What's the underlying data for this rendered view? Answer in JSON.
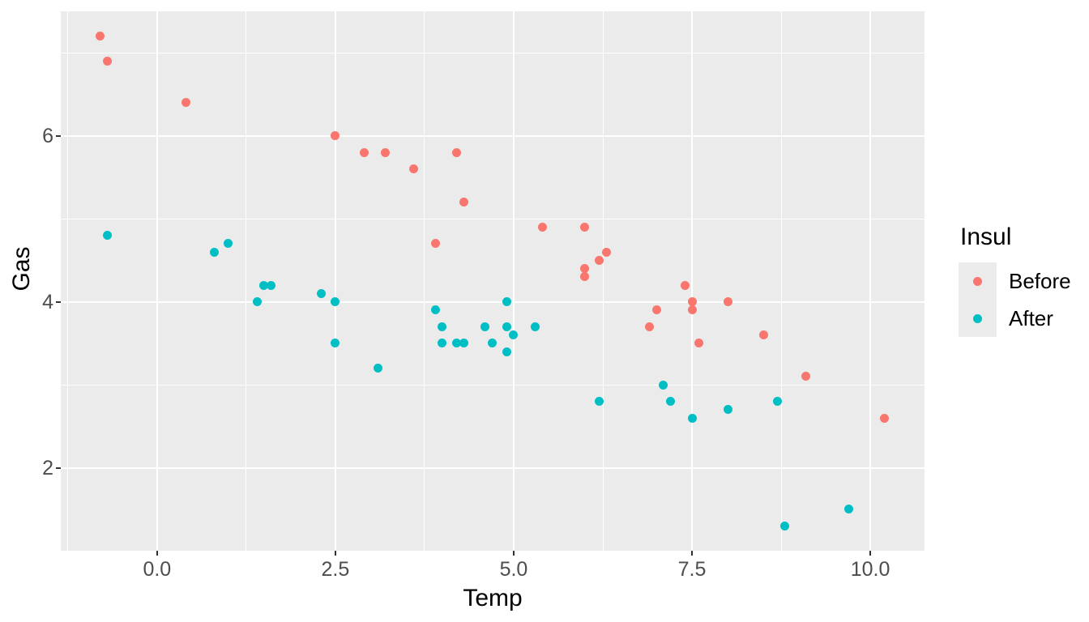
{
  "chart_data": {
    "type": "scatter",
    "title": "",
    "xlabel": "Temp",
    "ylabel": "Gas",
    "xlim": [
      -1.35,
      10.76
    ],
    "ylim": [
      1.0,
      7.5
    ],
    "grid": "on",
    "panel_background": "#EBEBEB",
    "gridline_color": "#FFFFFF",
    "tick_text_color": "#4D4D4D",
    "x_axis": {
      "ticks": [
        {
          "v": 0,
          "label": "0.0"
        },
        {
          "v": 2.5,
          "label": "2.5"
        },
        {
          "v": 5,
          "label": "5.0"
        },
        {
          "v": 7.5,
          "label": "7.5"
        },
        {
          "v": 10,
          "label": "10.0"
        }
      ],
      "minor": [
        -1.25,
        1.25,
        3.75,
        6.25,
        8.75
      ]
    },
    "y_axis": {
      "ticks": [
        {
          "v": 2,
          "label": "2"
        },
        {
          "v": 4,
          "label": "4"
        },
        {
          "v": 6,
          "label": "6"
        }
      ],
      "minor": [
        3,
        5,
        7
      ]
    },
    "legend": {
      "title": "Insul",
      "position": "right",
      "entries": [
        "Before",
        "After"
      ]
    },
    "series": [
      {
        "name": "Before",
        "color": "#F8766D",
        "points": [
          [
            -0.8,
            7.2
          ],
          [
            -0.7,
            6.9
          ],
          [
            0.4,
            6.4
          ],
          [
            2.5,
            6.0
          ],
          [
            2.9,
            5.8
          ],
          [
            3.2,
            5.8
          ],
          [
            3.6,
            5.6
          ],
          [
            3.9,
            4.7
          ],
          [
            4.2,
            5.8
          ],
          [
            4.3,
            5.2
          ],
          [
            5.4,
            4.9
          ],
          [
            6.0,
            4.9
          ],
          [
            6.0,
            4.4
          ],
          [
            6.0,
            4.3
          ],
          [
            6.2,
            4.5
          ],
          [
            6.3,
            4.6
          ],
          [
            6.9,
            3.7
          ],
          [
            7.0,
            3.9
          ],
          [
            7.4,
            4.2
          ],
          [
            7.5,
            4.0
          ],
          [
            7.5,
            3.9
          ],
          [
            7.6,
            3.5
          ],
          [
            8.0,
            4.0
          ],
          [
            8.5,
            3.6
          ],
          [
            9.1,
            3.1
          ],
          [
            10.2,
            2.6
          ]
        ]
      },
      {
        "name": "After",
        "color": "#00BFC4",
        "points": [
          [
            -0.7,
            4.8
          ],
          [
            0.8,
            4.6
          ],
          [
            1.0,
            4.7
          ],
          [
            1.4,
            4.0
          ],
          [
            1.5,
            4.2
          ],
          [
            1.6,
            4.2
          ],
          [
            2.3,
            4.1
          ],
          [
            2.5,
            4.0
          ],
          [
            2.5,
            3.5
          ],
          [
            3.1,
            3.2
          ],
          [
            3.9,
            3.9
          ],
          [
            4.0,
            3.5
          ],
          [
            4.0,
            3.7
          ],
          [
            4.2,
            3.5
          ],
          [
            4.3,
            3.5
          ],
          [
            4.6,
            3.7
          ],
          [
            4.7,
            3.5
          ],
          [
            4.9,
            3.4
          ],
          [
            4.9,
            3.7
          ],
          [
            4.9,
            4.0
          ],
          [
            5.0,
            3.6
          ],
          [
            5.3,
            3.7
          ],
          [
            6.2,
            2.8
          ],
          [
            7.1,
            3.0
          ],
          [
            7.2,
            2.8
          ],
          [
            7.5,
            2.6
          ],
          [
            8.0,
            2.7
          ],
          [
            8.7,
            2.8
          ],
          [
            8.8,
            1.3
          ],
          [
            9.7,
            1.5
          ]
        ]
      }
    ]
  }
}
